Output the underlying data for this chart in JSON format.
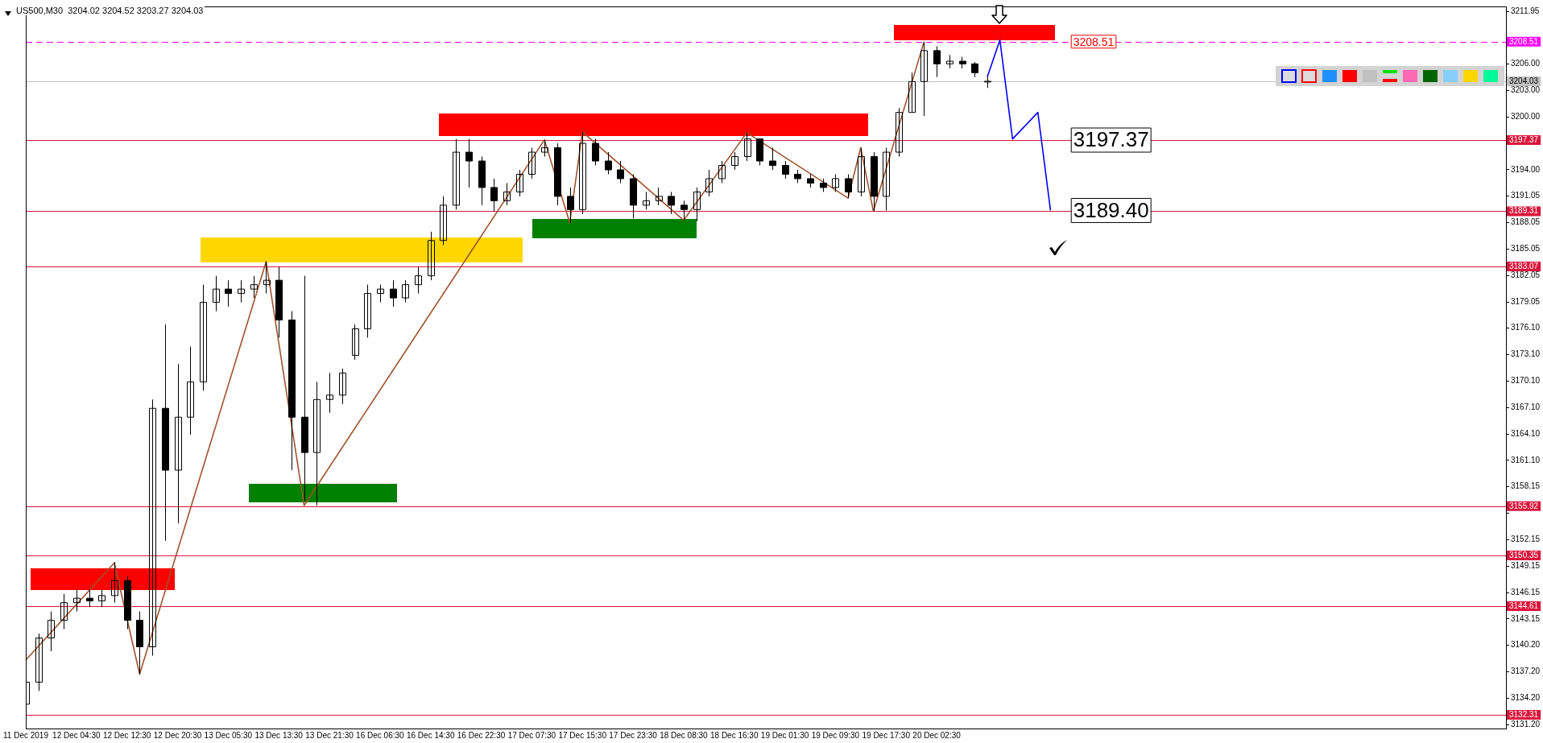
{
  "chart_data": {
    "type": "candlestick",
    "title": "US500,M30  3204.02 3204.52 3203.27 3204.03",
    "color": "#000000",
    "categories": [
      "11 Dec 2019",
      null,
      null,
      null,
      "12 Dec 04:30",
      null,
      null,
      null,
      "12 Dec 12:30",
      null,
      null,
      null,
      "12 Dec 20:30",
      null,
      null,
      null,
      "13 Dec 05:30",
      null,
      null,
      null,
      "13 Dec 13:30",
      null,
      null,
      null,
      "13 Dec 21:30",
      null,
      null,
      null,
      "16 Dec 06:30",
      null,
      null,
      null,
      "16 Dec 14:30",
      null,
      null,
      null,
      "16 Dec 22:30",
      null,
      null,
      null,
      "17 Dec 07:30",
      null,
      null,
      null,
      "17 Dec 15:30",
      null,
      null,
      null,
      "17 Dec 23:30",
      null,
      null,
      null,
      "18 Dec 08:30",
      null,
      null,
      null,
      "18 Dec 16:30",
      null,
      null,
      null,
      "19 Dec 01:30",
      null,
      null,
      null,
      "19 Dec 09:30",
      null,
      null,
      null,
      "19 Dec 17:30",
      null,
      null,
      null,
      "20 Dec 02:30",
      null,
      null,
      null,
      null,
      null,
      null,
      null,
      null,
      null,
      null,
      null,
      null,
      null,
      null,
      null,
      null,
      null,
      null,
      null,
      null,
      null,
      null,
      null,
      null,
      null,
      null,
      null,
      null,
      null,
      null,
      null,
      null,
      null,
      null,
      null,
      null,
      null,
      null,
      null,
      null,
      null,
      null,
      null,
      null,
      null
    ],
    "ohlc": [
      [
        3133.5,
        3137,
        3132.6,
        3136
      ],
      [
        3136,
        3141.5,
        3135,
        3141
      ],
      [
        3141,
        3144,
        3139.5,
        3143
      ],
      [
        3143,
        3146,
        3142,
        3145
      ],
      [
        3145,
        3146.5,
        3144,
        3145.5
      ],
      [
        3145.5,
        3146.5,
        3144.5,
        3145.2
      ],
      [
        3145.2,
        3146.5,
        3144.5,
        3145.8
      ],
      [
        3145.8,
        3149.6,
        3145,
        3147.5
      ],
      [
        3147.5,
        3148,
        3142,
        3143
      ],
      [
        3143,
        3144,
        3136.9,
        3140
      ],
      [
        3140,
        3168,
        3139,
        3167
      ],
      [
        3167,
        3176.5,
        3152,
        3160
      ],
      [
        3160,
        3172,
        3154,
        3166
      ],
      [
        3166,
        3174,
        3164,
        3170
      ],
      [
        3170,
        3181,
        3169,
        3179
      ],
      [
        3179,
        3182,
        3178,
        3180.5
      ],
      [
        3180.5,
        3181.5,
        3178.5,
        3180
      ],
      [
        3180,
        3181.5,
        3179,
        3180.5
      ],
      [
        3180.5,
        3182,
        3179.5,
        3181
      ],
      [
        3181,
        3183.6,
        3180,
        3181.5
      ],
      [
        3181.5,
        3183,
        3175,
        3177
      ],
      [
        3177,
        3178,
        3160,
        3166
      ],
      [
        3166,
        3182,
        3156.5,
        3162
      ],
      [
        3162,
        3170,
        3156,
        3168
      ],
      [
        3168,
        3171,
        3166.5,
        3168.5
      ],
      [
        3168.5,
        3171.5,
        3167.5,
        3171
      ],
      [
        3173,
        3176.5,
        3172.5,
        3176
      ],
      [
        3176,
        3181,
        3175,
        3180
      ],
      [
        3180,
        3181,
        3179,
        3180.5
      ],
      [
        3180.5,
        3181.5,
        3178.5,
        3179.5
      ],
      [
        3179.5,
        3181.5,
        3179,
        3181
      ],
      [
        3181,
        3183,
        3180,
        3182
      ],
      [
        3182,
        3187,
        3181.5,
        3186
      ],
      [
        3186,
        3191,
        3185.5,
        3190
      ],
      [
        3190,
        3197.5,
        3189.5,
        3196
      ],
      [
        3196,
        3197.5,
        3192,
        3195
      ],
      [
        3195,
        3195.5,
        3190,
        3192
      ],
      [
        3192,
        3193,
        3189.3,
        3190.5
      ],
      [
        3190.5,
        3192.5,
        3190,
        3191.5
      ],
      [
        3191.5,
        3194,
        3191,
        3193.5
      ],
      [
        3193.5,
        3196.5,
        3193,
        3196
      ],
      [
        3196,
        3197.4,
        3195.5,
        3196.5
      ],
      [
        3196.5,
        3197,
        3190,
        3191
      ],
      [
        3191,
        3192,
        3188,
        3189.5
      ],
      [
        3189.5,
        3198.3,
        3189,
        3197
      ],
      [
        3197,
        3197.5,
        3194.5,
        3195
      ],
      [
        3195,
        3196,
        3193.5,
        3194
      ],
      [
        3194,
        3195,
        3192.5,
        3193
      ],
      [
        3193,
        3193.5,
        3188.5,
        3190
      ],
      [
        3190,
        3191.5,
        3189.5,
        3190.5
      ],
      [
        3190.5,
        3192,
        3190,
        3191
      ],
      [
        3191,
        3191.5,
        3189,
        3190
      ],
      [
        3190,
        3190.5,
        3188.3,
        3189.5
      ],
      [
        3189.5,
        3192,
        3188.2,
        3191.5
      ],
      [
        3191.5,
        3194,
        3191,
        3193
      ],
      [
        3193,
        3195,
        3192.5,
        3194.5
      ],
      [
        3194.5,
        3196,
        3194,
        3195.5
      ],
      [
        3195.5,
        3198.2,
        3195,
        3197.5
      ],
      [
        3197.5,
        3197.5,
        3194.5,
        3195
      ],
      [
        3195,
        3196.5,
        3194,
        3194.5
      ],
      [
        3194.5,
        3195,
        3193,
        3193.5
      ],
      [
        3193.5,
        3194,
        3192.5,
        3193
      ],
      [
        3193,
        3193.5,
        3192,
        3192.5
      ],
      [
        3192.5,
        3193,
        3191.5,
        3192
      ],
      [
        3192,
        3193.5,
        3191.5,
        3193
      ],
      [
        3193,
        3193.5,
        3190.8,
        3191.5
      ],
      [
        3191.5,
        3196.5,
        3191,
        3195.5
      ],
      [
        3195.5,
        3196,
        3189.3,
        3191
      ],
      [
        3191,
        3196.5,
        3189.4,
        3196
      ],
      [
        3196,
        3201,
        3195.5,
        3200.5
      ],
      [
        3200.5,
        3205,
        3200.5,
        3204
      ],
      [
        3204,
        3208.5,
        3200.1,
        3207.5
      ],
      [
        3207.5,
        3208,
        3204.5,
        3206
      ],
      [
        3206,
        3207,
        3205.5,
        3206.3
      ],
      [
        3206.3,
        3206.8,
        3205.5,
        3206
      ],
      [
        3206,
        3206.2,
        3204.5,
        3205
      ],
      [
        3204.02,
        3204.52,
        3203.27,
        3204.03
      ],
      null,
      null,
      null,
      null,
      null,
      null,
      null,
      null,
      null,
      null,
      null,
      null,
      null,
      null,
      null,
      null,
      null,
      null,
      null,
      null,
      null,
      null,
      null,
      null,
      null,
      null,
      null,
      null,
      null,
      null,
      null,
      null,
      null,
      null,
      null,
      null,
      null,
      null,
      null,
      null,
      null
    ],
    "series": [
      {
        "type": "line",
        "color": "#a0522d",
        "values": [
          3138.5,
          null,
          null,
          null,
          null,
          null,
          null,
          3149.5,
          null,
          3136.9,
          null,
          null,
          null,
          null,
          null,
          null,
          null,
          null,
          null,
          3183.6,
          null,
          null,
          3156,
          null,
          null,
          null,
          null,
          null,
          null,
          null,
          null,
          null,
          null,
          null,
          null,
          null,
          null,
          null,
          null,
          null,
          null,
          3197.4,
          null,
          3188,
          3198.3,
          null,
          null,
          null,
          null,
          null,
          null,
          null,
          3188.3,
          null,
          null,
          null,
          null,
          3198.2,
          null,
          null,
          null,
          null,
          null,
          null,
          null,
          3190.8,
          3196.5,
          3189.3,
          null,
          null,
          null,
          3208.5,
          null,
          null,
          null,
          null,
          null,
          null,
          null,
          null,
          null,
          null,
          null,
          null,
          null,
          null,
          null,
          null,
          null,
          null,
          null,
          null,
          null,
          null,
          null,
          null,
          null,
          null,
          null,
          null,
          null,
          null,
          null,
          null,
          null,
          null,
          null,
          null,
          null,
          null,
          null,
          null,
          null,
          null,
          null,
          null,
          null,
          null
        ]
      },
      {
        "type": "line",
        "color": "#0000ff",
        "values": [
          null,
          null,
          null,
          null,
          null,
          null,
          null,
          null,
          null,
          null,
          null,
          null,
          null,
          null,
          null,
          null,
          null,
          null,
          null,
          null,
          null,
          null,
          null,
          null,
          null,
          null,
          null,
          null,
          null,
          null,
          null,
          null,
          null,
          null,
          null,
          null,
          null,
          null,
          null,
          null,
          null,
          null,
          null,
          null,
          null,
          null,
          null,
          null,
          null,
          null,
          null,
          null,
          null,
          null,
          null,
          null,
          null,
          null,
          null,
          null,
          null,
          null,
          null,
          null,
          null,
          null,
          null,
          null,
          null,
          null,
          null,
          null,
          null,
          null,
          null,
          null,
          3204.5,
          3208.7,
          3197.5,
          null,
          3200.5,
          3189.4,
          null,
          null,
          null,
          null,
          null,
          null,
          null,
          null,
          null,
          null,
          null,
          null,
          null,
          null,
          null,
          null,
          null,
          null,
          null,
          null,
          null,
          null,
          null,
          null,
          null,
          null,
          null,
          null,
          null,
          null,
          null,
          null,
          null,
          null,
          null,
          null
        ]
      }
    ],
    "ylim": [
      3130.75,
      3212.5
    ],
    "yticks": [
      3211.95,
      {
        "value": 3209,
        "label": null
      },
      {
        "value": 3206,
        "label": "3206.00"
      },
      {
        "value": 3203,
        "label": "3203.00"
      },
      {
        "value": 3200,
        "label": "3200.00"
      },
      {
        "value": 3197,
        "label": null
      },
      {
        "value": 3194,
        "label": "3194.00"
      },
      3191.05,
      3188.05,
      3185.05,
      3182.05,
      3179.05,
      {
        "value": 3176.1,
        "label": "3176.10"
      },
      {
        "value": 3173.1,
        "label": "3173.10"
      },
      {
        "value": 3170.1,
        "label": "3170.10"
      },
      {
        "value": 3167.1,
        "label": "3167.10"
      },
      {
        "value": 3164.1,
        "label": "3164.10"
      },
      {
        "value": 3161.1,
        "label": "3161.10"
      },
      3158.15,
      {
        "value": 3155.15,
        "label": null
      },
      3152.15,
      3149.15,
      3146.15,
      3143.15,
      {
        "value": 3140.2,
        "label": "3140.20"
      },
      {
        "value": 3137.2,
        "label": "3137.20"
      },
      {
        "value": 3134.2,
        "label": "3134.20"
      },
      {
        "value": 3131.2,
        "label": "3131.20"
      }
    ],
    "ref_lines": [
      {
        "axis": "y",
        "value": 3208.51,
        "label": "3208.51",
        "color": "#ff00ff",
        "line_style": "dashed"
      },
      {
        "axis": "y",
        "value": 3204.03,
        "label": "3204.03",
        "color": "#c0c0c0"
      },
      {
        "axis": "y",
        "value": 3197.37,
        "label": "3197.37",
        "color": "#dc143c"
      },
      {
        "axis": "y",
        "value": 3189.31,
        "label": "3189.31",
        "color": "#dc143c"
      },
      {
        "axis": "y",
        "value": 3183.07,
        "label": "3183.07",
        "color": "#dc143c"
      },
      {
        "axis": "y",
        "value": 3155.92,
        "label": "3155.92",
        "color": "#dc143c"
      },
      {
        "axis": "y",
        "value": 3150.35,
        "label": "3150.35",
        "color": "#dc143c"
      },
      {
        "axis": "y",
        "value": 3144.61,
        "label": "3144.61",
        "color": "#dc143c"
      },
      {
        "axis": "y",
        "value": 3132.31,
        "label": "3132.31",
        "color": "#dc143c"
      }
    ],
    "annotations": [
      {
        "text": "3197.37",
        "y": 3197.37
      },
      {
        "text": "3189.40",
        "y": 3189.4
      },
      {
        "text": "3208.51",
        "y": 3208.51
      }
    ]
  }
}
